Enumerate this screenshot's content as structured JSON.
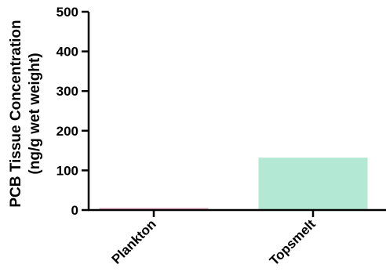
{
  "chart_data": {
    "type": "bar",
    "categories": [
      "Plankton",
      "Topsmelt"
    ],
    "values": [
      5,
      132
    ],
    "bar_colors": [
      "#e8a4c8",
      "#b3e8d4"
    ],
    "ylabel_lines": [
      "PCB Tissue Concentration",
      "(ng/g wet weight)"
    ],
    "ylim": [
      0,
      500
    ],
    "yticks": [
      0,
      100,
      200,
      300,
      400,
      500
    ],
    "yticklabels": [
      "0",
      "100",
      "200",
      "300",
      "400",
      "500"
    ],
    "grid": false
  }
}
